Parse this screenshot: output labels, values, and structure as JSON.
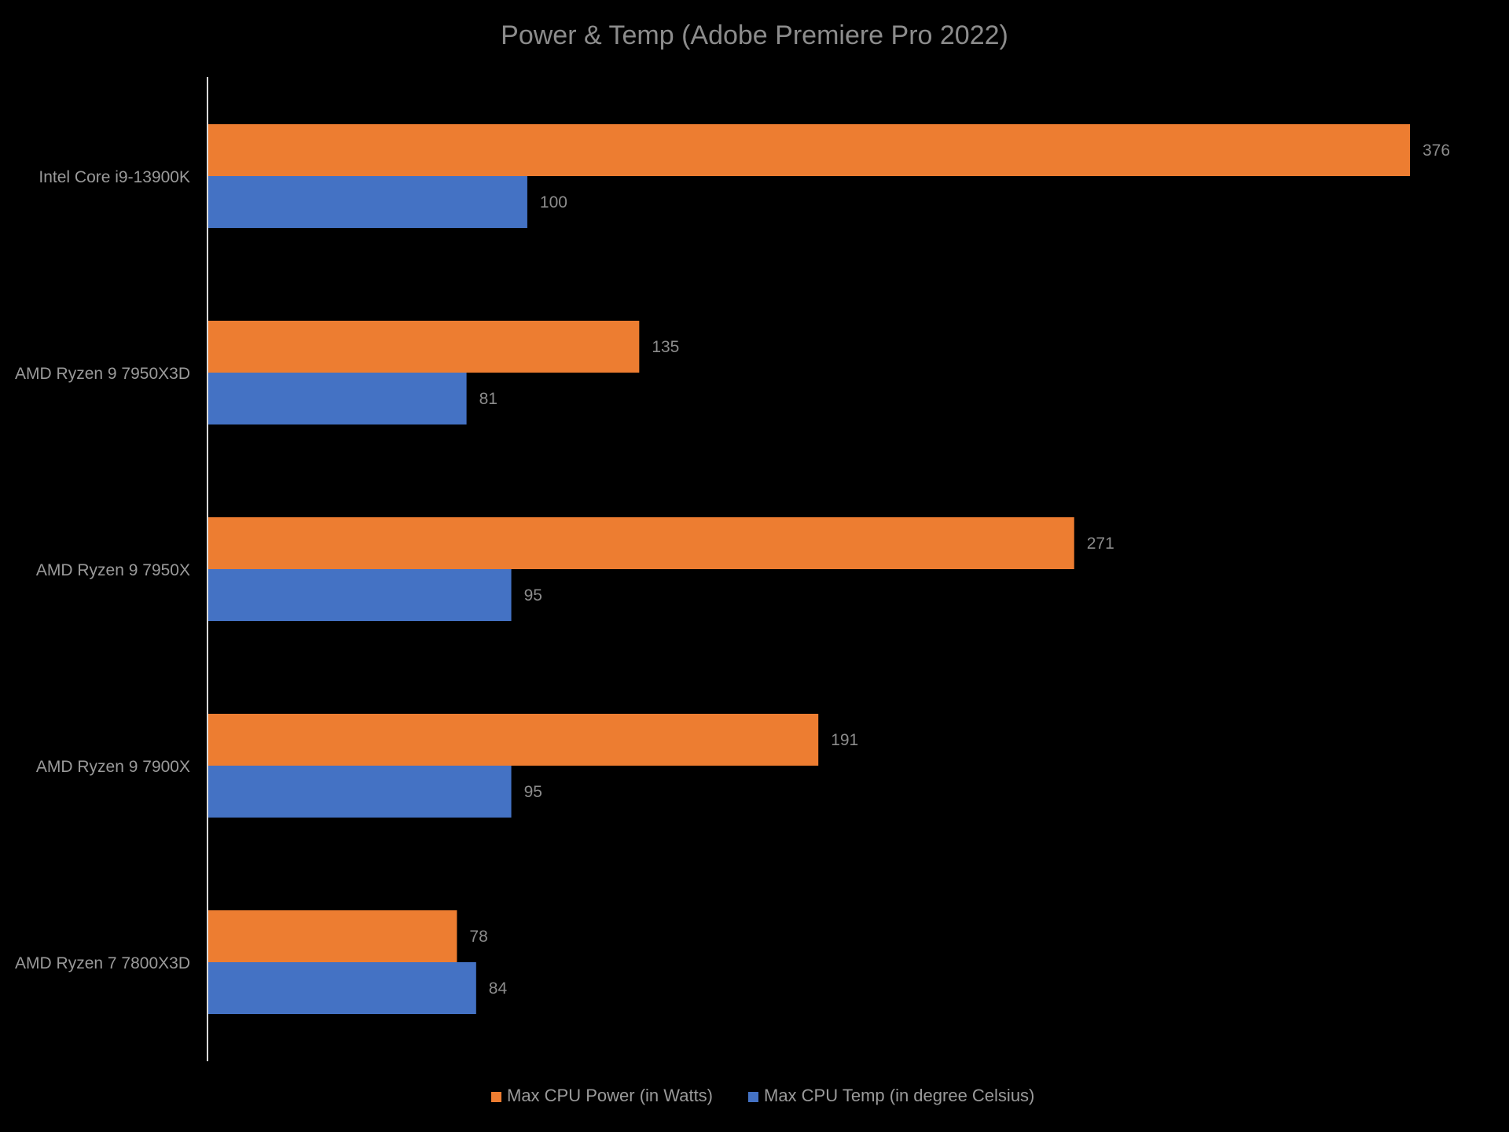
{
  "chart_data": {
    "type": "bar",
    "orientation": "horizontal",
    "title": "Power & Temp (Adobe Premiere Pro 2022)",
    "xlabel": "",
    "ylabel": "",
    "categories": [
      "Intel Core i9-13900K",
      "AMD Ryzen 9 7950X3D",
      "AMD Ryzen 9 7950X",
      "AMD Ryzen 9 7900X",
      "AMD Ryzen 7 7800X3D"
    ],
    "series": [
      {
        "name": "Max CPU Power (in Watts)",
        "color": "#ed7d31",
        "values": [
          376,
          135,
          271,
          191,
          78
        ]
      },
      {
        "name": "Max CPU Temp (in degree Celsius)",
        "color": "#4472c4",
        "values": [
          100,
          81,
          95,
          95,
          84
        ]
      }
    ],
    "xlim": [
      0,
      400
    ],
    "grid": false,
    "data_labels": true,
    "legend_position": "bottom",
    "background": "#000000"
  }
}
